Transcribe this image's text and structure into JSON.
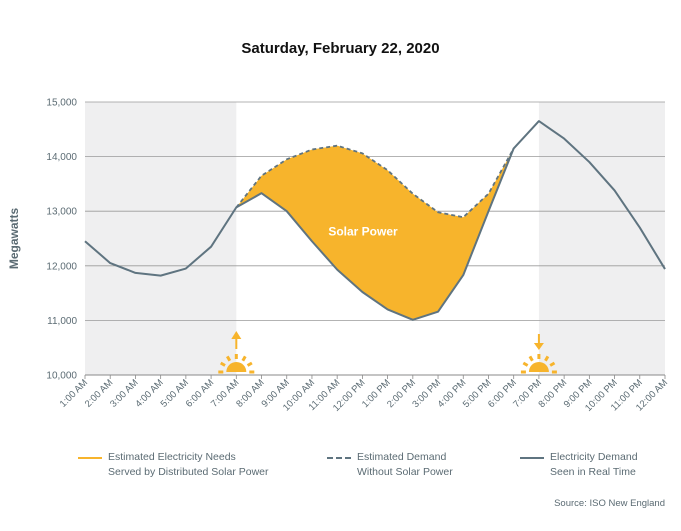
{
  "chart_data": {
    "type": "line",
    "title": "Saturday, February 22, 2020",
    "ylabel": "Megawatts",
    "xlabel": "",
    "ylim": [
      10000,
      15000
    ],
    "y_ticks": [
      "10,000",
      "11,000",
      "12,000",
      "13,000",
      "14,000",
      "15,000"
    ],
    "categories": [
      "1:00 AM",
      "2:00 AM",
      "3:00 AM",
      "4:00 AM",
      "5:00 AM",
      "6:00 AM",
      "7:00 AM",
      "8:00 AM",
      "9:00 AM",
      "10:00 AM",
      "11:00 AM",
      "12:00 PM",
      "1:00 PM",
      "2:00 PM",
      "3:00 PM",
      "4:00 PM",
      "5:00 PM",
      "6:00 PM",
      "7:00 PM",
      "8:00 PM",
      "9:00 PM",
      "10:00 PM",
      "11:00 PM",
      "12:00 AM"
    ],
    "series": [
      {
        "name": "Electricity Demand Seen in Real Time",
        "color": "#5f7480",
        "style": "solid",
        "values": [
          12450,
          12050,
          11870,
          11820,
          11950,
          12350,
          13070,
          13330,
          13000,
          12450,
          11930,
          11520,
          11200,
          11010,
          11160,
          11830,
          13000,
          14150,
          14650,
          14330,
          13900,
          13380,
          12700,
          11940
        ]
      },
      {
        "name": "Estimated Demand Without Solar Power",
        "color": "#5f7480",
        "style": "dashed",
        "values": [
          null,
          null,
          null,
          null,
          null,
          null,
          13070,
          13650,
          13950,
          14130,
          14200,
          14060,
          13750,
          13320,
          12980,
          12890,
          13320,
          14150,
          null,
          null,
          null,
          null,
          null,
          null
        ]
      }
    ],
    "fill": {
      "name": "Estimated Electricity Needs Served by Distributed Solar Power",
      "color": "#f7b42c",
      "label": "Solar Power"
    },
    "shaded_periods": [
      [
        "1:00 AM",
        "7:00 AM"
      ],
      [
        "7:00 PM",
        "12:00 AM"
      ]
    ],
    "shade_color": "#efeff0",
    "markers": [
      {
        "icon": "sunrise-icon",
        "at": "7:00 AM"
      },
      {
        "icon": "sunset-icon",
        "at": "7:00 PM"
      }
    ],
    "grid": true,
    "legend": "bottom"
  },
  "legend": [
    {
      "text": "Estimated Electricity Needs\nServed by Distributed Solar Power",
      "color": "#f7b42c",
      "style": "solid"
    },
    {
      "text": "Estimated Demand\nWithout Solar Power",
      "color": "#5f7480",
      "style": "dashed"
    },
    {
      "text": "Electricity Demand\nSeen in Real Time",
      "color": "#5f7480",
      "style": "solid"
    }
  ],
  "source": "Source: ISO New England"
}
